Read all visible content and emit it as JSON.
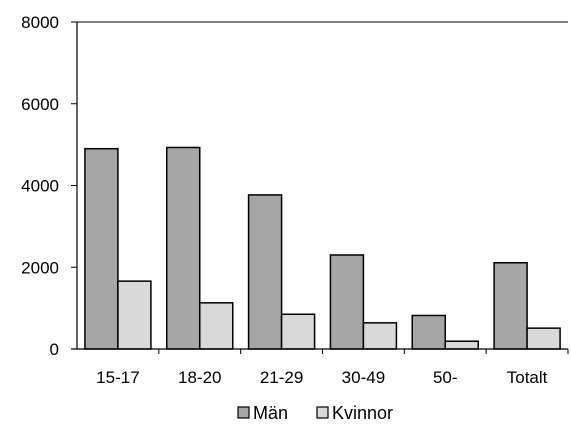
{
  "chart_data": {
    "type": "bar",
    "categories": [
      "15-17",
      "18-20",
      "21-29",
      "30-49",
      "50-",
      "Totalt"
    ],
    "series": [
      {
        "name": "Män",
        "values": [
          4900,
          4930,
          3770,
          2300,
          820,
          2110
        ],
        "color": "#a6a6a6"
      },
      {
        "name": "Kvinnor",
        "values": [
          1660,
          1130,
          850,
          640,
          190,
          510
        ],
        "color": "#d9d9d9"
      }
    ],
    "y_ticks": [
      "0",
      "2000",
      "4000",
      "6000",
      "8000"
    ],
    "ylim": [
      0,
      8000
    ],
    "title": "",
    "xlabel": "",
    "ylabel": "",
    "grid": false,
    "legend_position": "bottom"
  }
}
